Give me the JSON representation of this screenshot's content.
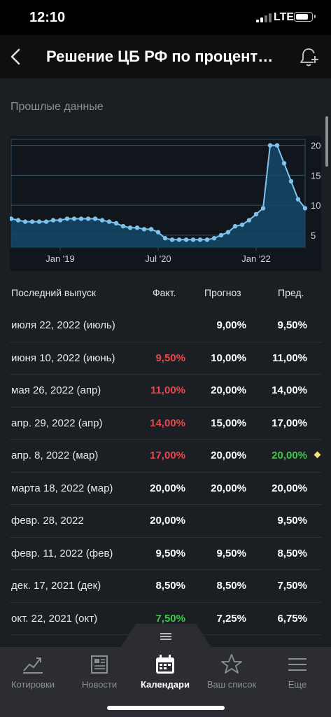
{
  "status_bar": {
    "time": "12:10",
    "network": "LTE"
  },
  "header": {
    "title": "Решение ЦБ РФ по процент…",
    "back_icon": "chevron-left-icon",
    "alert_icon": "bell-plus-icon"
  },
  "section_title": "Прошлые данные",
  "chart_data": {
    "type": "area",
    "x_ticks": [
      "Jan '19",
      "Jul '20",
      "Jan '22"
    ],
    "y_ticks": [
      "20",
      "15",
      "10",
      "5"
    ],
    "ylim": [
      3,
      21
    ],
    "grid": true,
    "values": [
      7.75,
      7.5,
      7.25,
      7.25,
      7.25,
      7.25,
      7.5,
      7.5,
      7.75,
      7.75,
      7.75,
      7.75,
      7.75,
      7.5,
      7.25,
      7.0,
      6.5,
      6.25,
      6.25,
      6.0,
      6.0,
      5.5,
      4.5,
      4.25,
      4.25,
      4.25,
      4.25,
      4.25,
      4.25,
      4.5,
      5.0,
      5.5,
      6.5,
      6.75,
      7.5,
      8.5,
      9.5,
      20.0,
      20.0,
      17.0,
      14.0,
      11.0,
      9.5
    ],
    "line_color": "#7fc3ec",
    "fill_color": "#144868"
  },
  "table": {
    "headers": {
      "date": "Последний выпуск",
      "actual": "Факт.",
      "forecast": "Прогноз",
      "previous": "Пред."
    },
    "rows": [
      {
        "date": "июля 22, 2022 (июль)",
        "actual": "",
        "forecast": "9,00%",
        "previous": "9,50%",
        "actual_color": "#ffffff",
        "previous_color": "#ffffff",
        "mark": false
      },
      {
        "date": "июня 10, 2022 (июнь)",
        "actual": "9,50%",
        "forecast": "10,00%",
        "previous": "11,00%",
        "actual_color": "#e8474b",
        "previous_color": "#ffffff",
        "mark": false
      },
      {
        "date": "мая 26, 2022 (апр)",
        "actual": "11,00%",
        "forecast": "20,00%",
        "previous": "14,00%",
        "actual_color": "#e8474b",
        "previous_color": "#ffffff",
        "mark": false
      },
      {
        "date": "апр. 29, 2022 (апр)",
        "actual": "14,00%",
        "forecast": "15,00%",
        "previous": "17,00%",
        "actual_color": "#e8474b",
        "previous_color": "#ffffff",
        "mark": false
      },
      {
        "date": "апр. 8, 2022 (мар)",
        "actual": "17,00%",
        "forecast": "20,00%",
        "previous": "20,00%",
        "actual_color": "#e8474b",
        "previous_color": "#3cc94a",
        "mark": true
      },
      {
        "date": "марта 18, 2022 (мар)",
        "actual": "20,00%",
        "forecast": "20,00%",
        "previous": "20,00%",
        "actual_color": "#ffffff",
        "previous_color": "#ffffff",
        "mark": false
      },
      {
        "date": "февр. 28, 2022",
        "actual": "20,00%",
        "forecast": "",
        "previous": "9,50%",
        "actual_color": "#ffffff",
        "previous_color": "#ffffff",
        "mark": false
      },
      {
        "date": "февр. 11, 2022 (фев)",
        "actual": "9,50%",
        "forecast": "9,50%",
        "previous": "8,50%",
        "actual_color": "#ffffff",
        "previous_color": "#ffffff",
        "mark": false
      },
      {
        "date": "дек. 17, 2021 (дек)",
        "actual": "8,50%",
        "forecast": "8,50%",
        "previous": "7,50%",
        "actual_color": "#ffffff",
        "previous_color": "#ffffff",
        "mark": false
      },
      {
        "date": "окт. 22, 2021 (окт)",
        "actual": "7,50%",
        "forecast": "7,25%",
        "previous": "6,75%",
        "actual_color": "#3cc94a",
        "previous_color": "#ffffff",
        "mark": false
      }
    ]
  },
  "tabs": [
    {
      "label": "Котировки",
      "icon": "chart-line-icon",
      "active": false
    },
    {
      "label": "Новости",
      "icon": "newspaper-icon",
      "active": false
    },
    {
      "label": "Календари",
      "icon": "calendar-icon",
      "active": true
    },
    {
      "label": "Ваш список",
      "icon": "star-icon",
      "active": false
    },
    {
      "label": "Еще",
      "icon": "menu-icon",
      "active": false
    }
  ]
}
